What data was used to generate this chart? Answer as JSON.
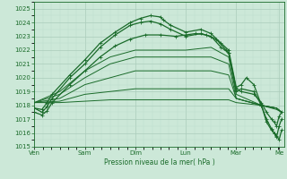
{
  "background_color": "#cce8d8",
  "grid_major_color": "#aaccbb",
  "grid_minor_color": "#bbddcc",
  "line_color": "#1a6b2a",
  "xlabel": "Pression niveau de la mer( hPa )",
  "ylim": [
    1015,
    1025.5
  ],
  "yticks": [
    1015,
    1016,
    1017,
    1018,
    1019,
    1020,
    1021,
    1022,
    1023,
    1024,
    1025
  ],
  "day_labels": [
    "Ven",
    "Sam",
    "Dim",
    "Lun",
    "Mar",
    "Me"
  ],
  "day_positions": [
    0,
    1,
    2,
    3,
    4,
    4.85
  ],
  "xlim": [
    0,
    4.95
  ],
  "figsize": [
    3.2,
    2.0
  ],
  "dpi": 100,
  "series": [
    {
      "x": [
        0.0,
        0.15,
        0.25,
        0.35,
        0.7,
        1.0,
        1.3,
        1.6,
        1.9,
        2.1,
        2.3,
        2.5,
        2.55,
        2.7,
        3.0,
        3.3,
        3.5,
        3.7,
        3.85,
        4.0,
        4.1,
        4.2,
        4.35,
        4.5,
        4.6,
        4.7,
        4.75,
        4.8,
        4.85,
        4.9
      ],
      "y": [
        1017.8,
        1017.7,
        1018.2,
        1018.8,
        1020.2,
        1021.3,
        1022.5,
        1023.3,
        1024.0,
        1024.3,
        1024.5,
        1024.4,
        1024.2,
        1023.8,
        1023.3,
        1023.5,
        1023.2,
        1022.5,
        1022.0,
        1019.3,
        1019.5,
        1020.0,
        1019.5,
        1018.0,
        1017.0,
        1016.3,
        1016.0,
        1015.8,
        1015.5,
        1016.2
      ],
      "marker": true,
      "lw": 0.9
    },
    {
      "x": [
        0.0,
        0.15,
        0.25,
        0.35,
        0.7,
        1.0,
        1.3,
        1.6,
        1.9,
        2.1,
        2.3,
        2.5,
        2.7,
        3.0,
        3.3,
        3.5,
        3.7,
        3.85,
        4.0,
        4.1,
        4.35,
        4.5,
        4.6,
        4.7,
        4.75,
        4.8,
        4.85,
        4.9
      ],
      "y": [
        1017.8,
        1017.5,
        1017.9,
        1018.5,
        1020.0,
        1021.0,
        1022.2,
        1023.1,
        1023.8,
        1024.0,
        1024.1,
        1023.9,
        1023.5,
        1023.0,
        1023.2,
        1023.0,
        1022.2,
        1021.8,
        1019.2,
        1019.0,
        1018.8,
        1018.2,
        1017.5,
        1017.0,
        1016.8,
        1016.5,
        1017.2,
        1017.5
      ],
      "marker": true,
      "lw": 0.9
    },
    {
      "x": [
        0.0,
        0.15,
        0.25,
        0.35,
        0.7,
        1.0,
        1.3,
        1.6,
        1.9,
        2.2,
        2.5,
        2.8,
        3.0,
        3.2,
        3.4,
        3.6,
        3.8,
        3.85,
        4.0,
        4.1,
        4.35,
        4.5,
        4.6,
        4.7,
        4.75,
        4.8,
        4.85,
        4.9
      ],
      "y": [
        1017.5,
        1017.3,
        1017.6,
        1018.2,
        1019.5,
        1020.5,
        1021.5,
        1022.3,
        1022.8,
        1023.1,
        1023.1,
        1023.0,
        1023.1,
        1023.2,
        1023.1,
        1022.8,
        1022.0,
        1021.8,
        1019.0,
        1019.2,
        1019.0,
        1018.0,
        1016.8,
        1016.2,
        1016.0,
        1015.7,
        1016.5,
        1017.0
      ],
      "marker": true,
      "lw": 0.9
    },
    {
      "x": [
        0.0,
        0.5,
        1.0,
        1.5,
        2.0,
        2.5,
        3.0,
        3.5,
        3.85,
        4.0,
        4.5,
        4.8,
        4.9
      ],
      "y": [
        1018.2,
        1019.0,
        1020.5,
        1021.5,
        1022.0,
        1022.0,
        1022.0,
        1022.2,
        1021.5,
        1018.8,
        1018.0,
        1017.8,
        1017.5
      ],
      "marker": false,
      "lw": 0.7
    },
    {
      "x": [
        0.0,
        0.5,
        1.0,
        1.5,
        2.0,
        2.5,
        3.0,
        3.5,
        3.85,
        4.0,
        4.5,
        4.8,
        4.9
      ],
      "y": [
        1018.2,
        1018.8,
        1020.0,
        1021.0,
        1021.5,
        1021.5,
        1021.5,
        1021.5,
        1021.0,
        1018.5,
        1018.0,
        1017.7,
        1017.5
      ],
      "marker": false,
      "lw": 0.7
    },
    {
      "x": [
        0.0,
        0.5,
        1.0,
        1.5,
        2.0,
        2.5,
        3.0,
        3.5,
        3.85,
        4.0,
        4.5,
        4.8,
        4.9
      ],
      "y": [
        1018.2,
        1018.5,
        1019.5,
        1020.0,
        1020.5,
        1020.5,
        1020.5,
        1020.5,
        1020.2,
        1018.5,
        1018.0,
        1017.8,
        1017.5
      ],
      "marker": false,
      "lw": 0.7
    },
    {
      "x": [
        0.0,
        0.5,
        1.0,
        1.5,
        2.0,
        2.5,
        3.0,
        3.5,
        3.85,
        4.0,
        4.5,
        4.8,
        4.9
      ],
      "y": [
        1018.2,
        1018.3,
        1018.8,
        1019.0,
        1019.2,
        1019.2,
        1019.2,
        1019.2,
        1019.2,
        1018.5,
        1018.0,
        1017.8,
        1017.5
      ],
      "marker": false,
      "lw": 0.7
    },
    {
      "x": [
        0.0,
        0.5,
        1.0,
        1.5,
        2.0,
        2.5,
        3.0,
        3.5,
        3.85,
        4.0,
        4.5,
        4.8,
        4.9
      ],
      "y": [
        1018.2,
        1018.2,
        1018.3,
        1018.4,
        1018.4,
        1018.4,
        1018.4,
        1018.4,
        1018.4,
        1018.2,
        1018.0,
        1017.8,
        1017.5
      ],
      "marker": false,
      "lw": 0.7
    }
  ]
}
